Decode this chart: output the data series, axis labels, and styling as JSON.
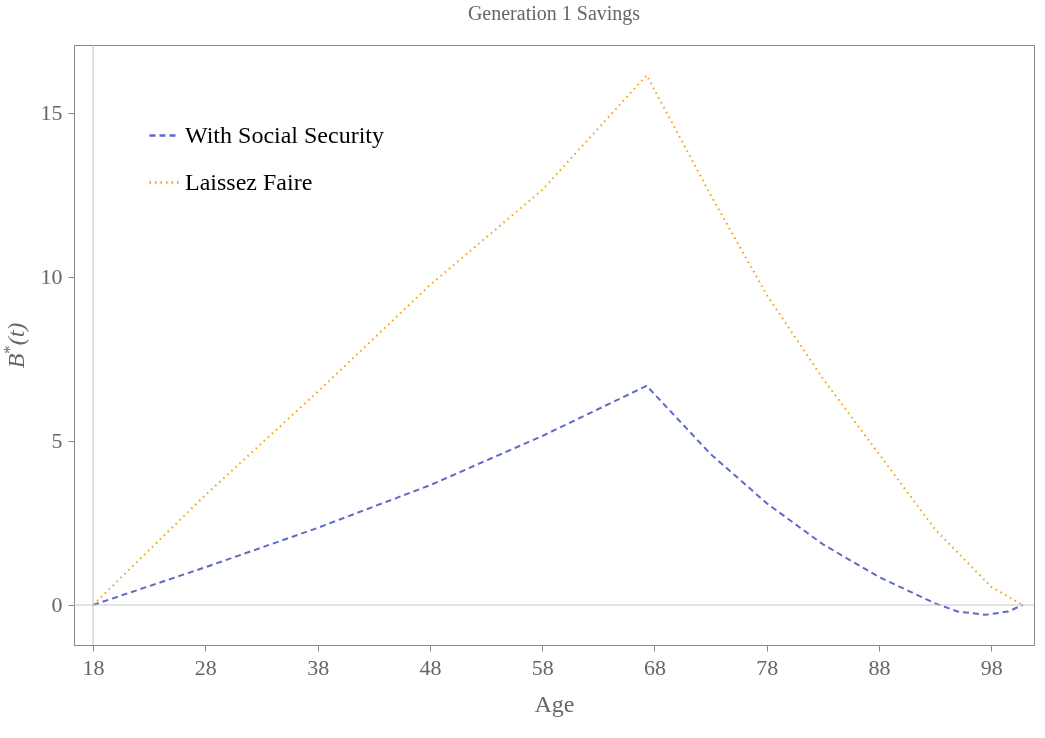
{
  "chart_data": {
    "type": "line",
    "title": "Generation 1 Savings",
    "xlabel": "Age",
    "ylabel": "B$^{*}$(t)",
    "xlim": [
      16.3,
      101.8
    ],
    "ylim": [
      -1.22,
      17.07
    ],
    "xticks": [
      18,
      28,
      38,
      48,
      58,
      68,
      78,
      88,
      98
    ],
    "yticks": [
      0,
      5,
      10,
      15
    ],
    "legend": "top left",
    "grid": false,
    "ref_lines": [
      {
        "axis": "x",
        "value": 18,
        "color": "#c8c8c8"
      },
      {
        "axis": "y",
        "value": 0,
        "color": "#c8c8c8"
      }
    ],
    "series": [
      {
        "name": "With Social Security",
        "color": "#5e6ac6",
        "line_style": "dashed",
        "x": [
          18,
          28,
          38,
          48,
          58,
          67.3,
          73,
          78,
          83,
          88,
          93,
          95,
          97.5,
          99.5,
          100.8
        ],
        "values": [
          0,
          1.15,
          2.35,
          3.65,
          5.15,
          6.68,
          4.6,
          3.1,
          1.85,
          0.85,
          0.05,
          -0.2,
          -0.3,
          -0.2,
          0
        ]
      },
      {
        "name": "Laissez Faire",
        "color": "#f5a00a",
        "line_style": "dotted",
        "x": [
          18,
          28,
          38,
          48,
          58,
          67.3,
          73,
          78,
          83,
          88,
          93,
          98,
          100.8
        ],
        "values": [
          0,
          3.35,
          6.5,
          9.75,
          12.65,
          16.15,
          12.5,
          9.45,
          6.9,
          4.6,
          2.3,
          0.55,
          0
        ]
      }
    ]
  }
}
